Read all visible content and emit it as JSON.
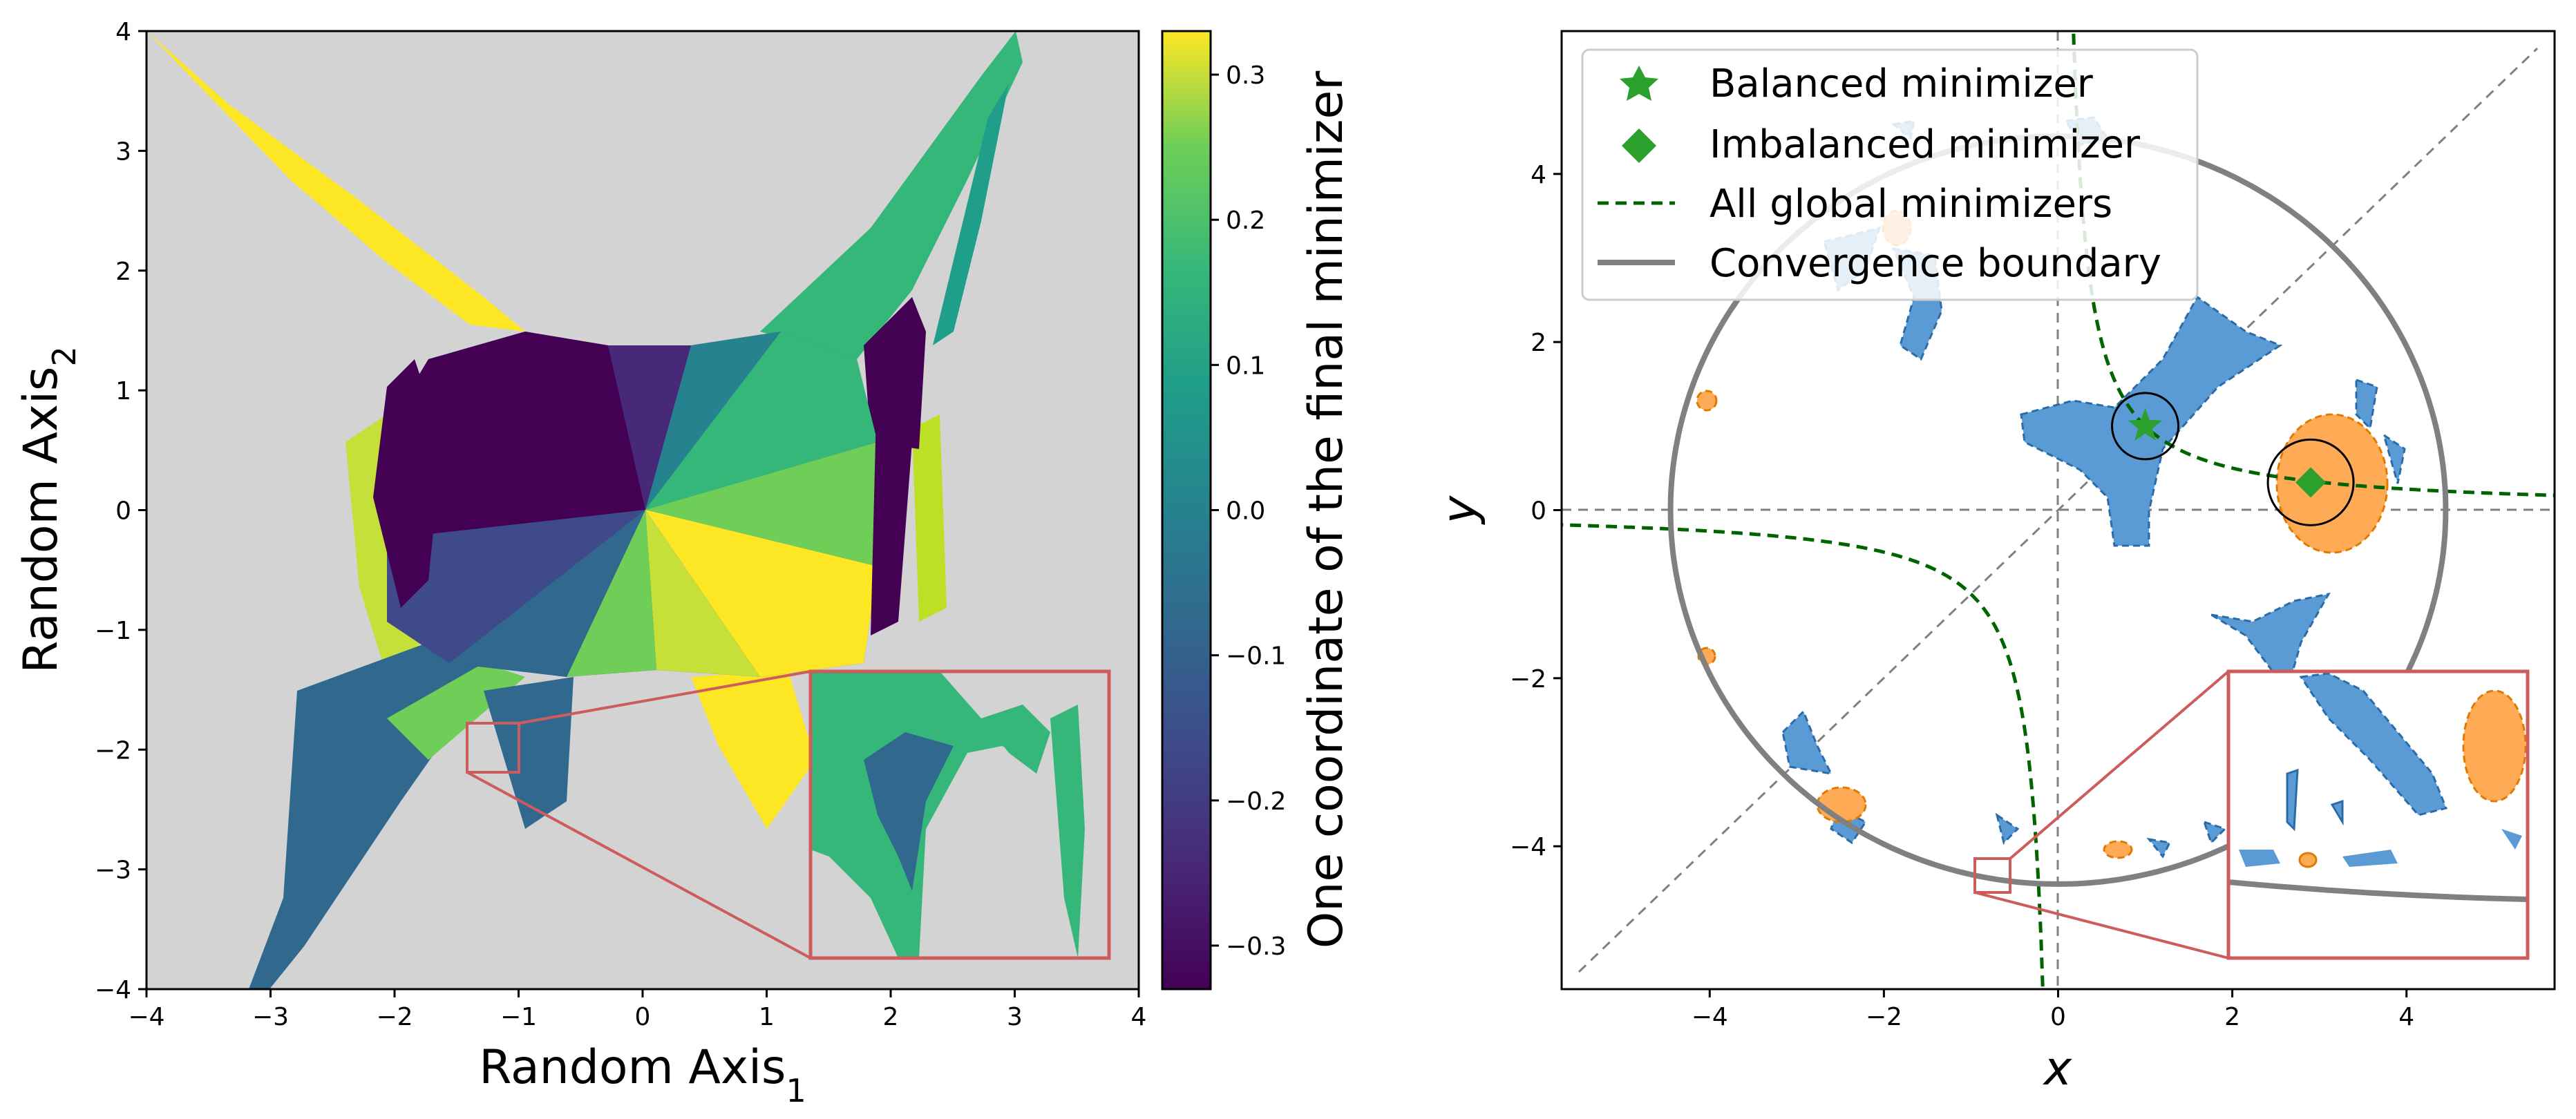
{
  "figure": {
    "panels": 2
  },
  "chart_data": [
    {
      "type": "heatmap",
      "title": "",
      "xlabel": "Random Axis",
      "xlabel_sub": "1",
      "ylabel": "Random Axis",
      "ylabel_sub": "2",
      "xlim": [
        -4,
        4
      ],
      "ylim": [
        -4,
        4
      ],
      "xticks": [
        -4,
        -3,
        -2,
        -1,
        0,
        1,
        2,
        3,
        4
      ],
      "yticks": [
        -4,
        -3,
        -2,
        -1,
        0,
        1,
        2,
        3,
        4
      ],
      "xtick_labels": [
        "−4",
        "−3",
        "−2",
        "−1",
        "0",
        "1",
        "2",
        "3",
        "4"
      ],
      "ytick_labels": [
        "−4",
        "−3",
        "−2",
        "−1",
        "0",
        "1",
        "2",
        "3",
        "4"
      ],
      "colorbar": {
        "label": "One coordinate of the final minimizer",
        "range": [
          -0.33,
          0.33
        ],
        "ticks": [
          -0.3,
          -0.2,
          -0.1,
          0.0,
          0.1,
          0.2,
          0.3
        ],
        "tick_labels": [
          "−0.3",
          "−0.2",
          "−0.1",
          "0.0",
          "0.1",
          "0.2",
          "0.3"
        ],
        "colormap": "viridis"
      },
      "background_color": "#d3d3d3",
      "inset": {
        "source_box": {
          "x": [
            -1.4,
            -1.0
          ],
          "y": [
            -2.2,
            -1.75
          ]
        },
        "inset_region": {
          "x": [
            1.38,
            3.8
          ],
          "y": [
            -3.77,
            -1.35
          ]
        }
      }
    },
    {
      "type": "line",
      "title": "",
      "xlabel": "x",
      "ylabel": "y",
      "xlim": [
        -5.7,
        5.7
      ],
      "ylim": [
        -5.7,
        5.7
      ],
      "xticks": [
        -4,
        -2,
        0,
        2,
        4
      ],
      "yticks": [
        -4,
        -2,
        0,
        2,
        4
      ],
      "xtick_labels": [
        "−4",
        "−2",
        "0",
        "2",
        "4"
      ],
      "ytick_labels": [
        "−4",
        "−2",
        "0",
        "2",
        "4"
      ],
      "legend": {
        "position": "upper-left",
        "entries": [
          {
            "label": "Balanced minimizer",
            "marker": "star",
            "color": "#2ca02c"
          },
          {
            "label": "Imbalanced minimizer",
            "marker": "diamond",
            "color": "#2ca02c"
          },
          {
            "label": "All global minimizers",
            "style": "dashed",
            "color": "#006400"
          },
          {
            "label": "Convergence boundary",
            "style": "solid",
            "color": "#808080"
          }
        ]
      },
      "points": {
        "balanced": {
          "x": 1.0,
          "y": 1.0
        },
        "imbalanced": {
          "x": 2.9,
          "y": 0.33
        }
      },
      "global_minimizers": "xy = 1",
      "boundary": {
        "center": [
          0.0,
          0.0
        ],
        "radius": 4.45
      },
      "colors": {
        "blue_region": "#4a8fc9",
        "orange_region": "#ff9a33"
      },
      "inset": {
        "source_box": {
          "x": [
            -1.0,
            -0.55
          ],
          "y": [
            -4.55,
            -4.1
          ]
        },
        "inset_region": {
          "x": [
            1.98,
            5.4
          ],
          "y": [
            -5.38,
            -1.95
          ]
        }
      }
    }
  ]
}
